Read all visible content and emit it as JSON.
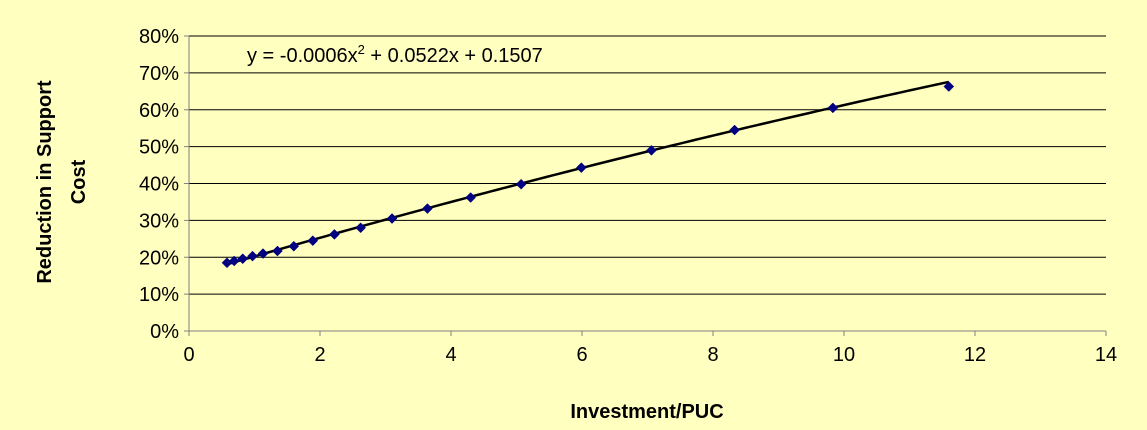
{
  "chart_data": {
    "type": "scatter",
    "title": "",
    "xlabel": "Investment/PUC",
    "ylabel_line1": "Reduction in Support",
    "ylabel_line2": "Cost",
    "xlim": [
      0,
      14
    ],
    "ylim": [
      0,
      0.8
    ],
    "x_ticks": [
      0,
      2,
      4,
      6,
      8,
      10,
      12,
      14
    ],
    "x_tick_labels": [
      "0",
      "2",
      "4",
      "6",
      "8",
      "10",
      "12",
      "14"
    ],
    "y_ticks": [
      0,
      0.1,
      0.2,
      0.3,
      0.4,
      0.5,
      0.6,
      0.7,
      0.8
    ],
    "y_tick_labels": [
      "0%",
      "10%",
      "20%",
      "30%",
      "40%",
      "50%",
      "60%",
      "70%",
      "80%"
    ],
    "grid": "horizontal",
    "background_color": "#FFFFC0",
    "plot_background_color": "#FFFFC0",
    "marker_color": "#000080",
    "trendline_color": "#000000",
    "series": [
      {
        "x": [
          0.58,
          0.69,
          0.82,
          0.97,
          1.13,
          1.35,
          1.6,
          1.89,
          2.22,
          2.62,
          3.1,
          3.64,
          4.3,
          5.07,
          5.99,
          7.06,
          8.33,
          9.83,
          11.6
        ],
        "y": [
          0.185,
          0.19,
          0.196,
          0.203,
          0.21,
          0.217,
          0.23,
          0.245,
          0.262,
          0.28,
          0.305,
          0.332,
          0.362,
          0.398,
          0.443,
          0.49,
          0.545,
          0.605,
          0.663
        ]
      }
    ],
    "trendline": {
      "type": "polynomial",
      "coefficients": [
        -0.0006,
        0.0522,
        0.1507
      ],
      "x_range": [
        0.58,
        11.6
      ],
      "equation_main": "y = -0.0006x",
      "equation_sup": "2",
      "equation_rest": " + 0.0522x + 0.1507"
    }
  }
}
